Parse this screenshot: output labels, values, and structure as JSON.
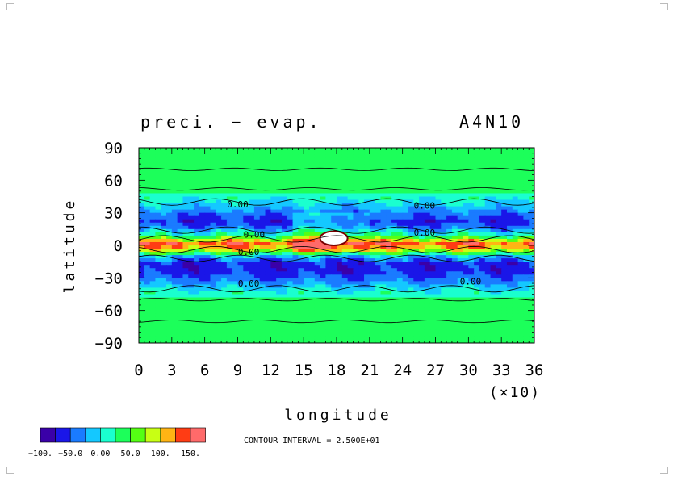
{
  "chart_data": {
    "type": "heatmap",
    "title": "preci. − evap.",
    "run_label": "A4N10",
    "xlabel": "longitude",
    "ylabel": "latitude",
    "x_multiplier_label": "(×10)",
    "xlim": [
      0,
      36
    ],
    "ylim": [
      -90,
      90
    ],
    "x_ticks": [
      "0",
      "3",
      "6",
      "9",
      "12",
      "15",
      "18",
      "21",
      "24",
      "27",
      "30",
      "33",
      "36"
    ],
    "y_ticks": [
      "90",
      "60",
      "30",
      "0",
      "−30",
      "−60",
      "−90"
    ],
    "y_tick_values": [
      90,
      60,
      30,
      0,
      -30,
      -60,
      -90
    ],
    "x_tick_values": [
      0,
      3,
      6,
      9,
      12,
      15,
      18,
      21,
      24,
      27,
      30,
      33,
      36
    ],
    "zero_contour_labels": [
      {
        "text": "0.00",
        "lon": 9.0,
        "lat": 35
      },
      {
        "text": "0.00",
        "lon": 10.5,
        "lat": 7
      },
      {
        "text": "0.00",
        "lon": 10.0,
        "lat": -9
      },
      {
        "text": "0.00",
        "lon": 10.0,
        "lat": -38
      },
      {
        "text": "0.00",
        "lon": 26.0,
        "lat": 34
      },
      {
        "text": "0.00",
        "lon": 26.0,
        "lat": 9
      },
      {
        "text": "0.00",
        "lon": 30.2,
        "lat": -36
      }
    ],
    "lat_profile": [
      {
        "lat": 90,
        "level": 5
      },
      {
        "lat": 80,
        "level": 5
      },
      {
        "lat": 72,
        "level": 5
      },
      {
        "lat": 62,
        "level": 5
      },
      {
        "lat": 52,
        "level": 5
      },
      {
        "lat": 44,
        "level": 4
      },
      {
        "lat": 36,
        "level": 3
      },
      {
        "lat": 30,
        "level": 2
      },
      {
        "lat": 22,
        "level": 1
      },
      {
        "lat": 16,
        "level": 2
      },
      {
        "lat": 10,
        "level": 4
      },
      {
        "lat": 5,
        "level": 7
      },
      {
        "lat": 2,
        "level": 9
      },
      {
        "lat": -2,
        "level": 8
      },
      {
        "lat": -6,
        "level": 6
      },
      {
        "lat": -10,
        "level": 3
      },
      {
        "lat": -16,
        "level": 1
      },
      {
        "lat": -24,
        "level": 1
      },
      {
        "lat": -32,
        "level": 2
      },
      {
        "lat": -38,
        "level": 3
      },
      {
        "lat": -44,
        "level": 4
      },
      {
        "lat": -52,
        "level": 5
      },
      {
        "lat": -62,
        "level": 5
      },
      {
        "lat": -72,
        "level": 5
      },
      {
        "lat": -90,
        "level": 5
      }
    ],
    "max_region": {
      "lon_min": 16.5,
      "lon_max": 19.0,
      "lat_min": 0,
      "lat_max": 13
    },
    "colorbar": {
      "colors": [
        "#3a00a8",
        "#1a16e8",
        "#1a7bff",
        "#14c8ff",
        "#1affcf",
        "#1cff5a",
        "#55ff14",
        "#c8ff14",
        "#ffb414",
        "#ff3c14",
        "#ff6a6a"
      ],
      "labels": [
        "−100.",
        "−50.0",
        "0.00",
        "50.0",
        "100.",
        "150."
      ]
    },
    "contour_interval_label": "CONTOUR INTERVAL = 2.500E+01"
  }
}
